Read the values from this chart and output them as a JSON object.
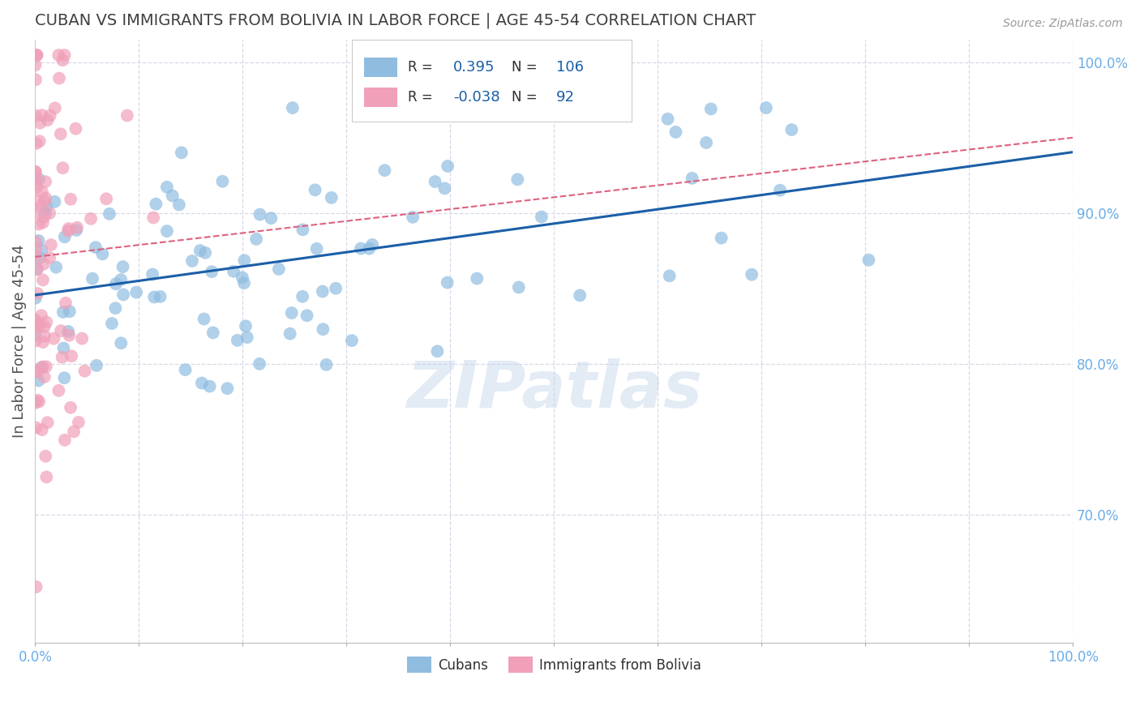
{
  "title": "CUBAN VS IMMIGRANTS FROM BOLIVIA IN LABOR FORCE | AGE 45-54 CORRELATION CHART",
  "source": "Source: ZipAtlas.com",
  "ylabel": "In Labor Force | Age 45-54",
  "xlim": [
    0.0,
    1.0
  ],
  "ylim": [
    0.615,
    1.015
  ],
  "ytick_vals": [
    0.7,
    0.8,
    0.9,
    1.0
  ],
  "xtick_vals": [
    0.0,
    0.1,
    0.2,
    0.3,
    0.4,
    0.5,
    0.6,
    0.7,
    0.8,
    0.9,
    1.0
  ],
  "cubans_color": "#90bce0",
  "bolivians_color": "#f0a0b8",
  "trendline_cubans_color": "#1a5fa8",
  "trendline_bolivians_color": "#e06080",
  "background_color": "#ffffff",
  "grid_color": "#d8d8e8",
  "title_color": "#404040",
  "title_fontsize": 14,
  "axis_label_fontsize": 13,
  "tick_label_color": "#6aace8",
  "watermark": "ZIPatlas",
  "legend_blue_color": "#90bce0",
  "legend_pink_color": "#f0a0b8",
  "legend_text_color": "#303030",
  "legend_value_color": "#1a5fa8",
  "R_cuban": 0.395,
  "N_cuban": 106,
  "R_bolivian": -0.038,
  "N_bolivian": 92
}
